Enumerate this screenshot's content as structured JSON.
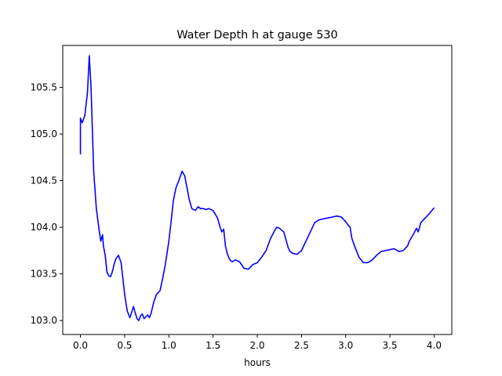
{
  "chart_data": {
    "type": "line",
    "title": "Water Depth h at gauge 530",
    "xlabel": "hours",
    "ylabel": "",
    "xlim": [
      -0.2,
      4.2
    ],
    "ylim": [
      102.85,
      105.95
    ],
    "xticks": [
      0.0,
      0.5,
      1.0,
      1.5,
      2.0,
      2.5,
      3.0,
      3.5,
      4.0
    ],
    "xtick_labels": [
      "0.0",
      "0.5",
      "1.0",
      "1.5",
      "2.0",
      "2.5",
      "3.0",
      "3.5",
      "4.0"
    ],
    "yticks": [
      103.0,
      103.5,
      104.0,
      104.5,
      105.0,
      105.5
    ],
    "ytick_labels": [
      "103.0",
      "103.5",
      "104.0",
      "104.5",
      "105.0",
      "105.5"
    ],
    "grid": false,
    "legend": "none",
    "series": [
      {
        "color": "#0000ff",
        "x": [
          0.0,
          0.0,
          0.02,
          0.05,
          0.08,
          0.1,
          0.12,
          0.15,
          0.18,
          0.21,
          0.23,
          0.25,
          0.26,
          0.28,
          0.3,
          0.32,
          0.34,
          0.36,
          0.38,
          0.4,
          0.43,
          0.46,
          0.48,
          0.5,
          0.53,
          0.56,
          0.6,
          0.62,
          0.64,
          0.66,
          0.68,
          0.7,
          0.72,
          0.74,
          0.76,
          0.78,
          0.8,
          0.83,
          0.86,
          0.9,
          0.93,
          0.96,
          1.0,
          1.03,
          1.05,
          1.08,
          1.12,
          1.15,
          1.18,
          1.2,
          1.23,
          1.26,
          1.3,
          1.33,
          1.36,
          1.39,
          1.42,
          1.45,
          1.5,
          1.55,
          1.58,
          1.6,
          1.62,
          1.64,
          1.66,
          1.68,
          1.7,
          1.72,
          1.75,
          1.8,
          1.85,
          1.9,
          1.95,
          2.0,
          2.05,
          2.1,
          2.15,
          2.2,
          2.22,
          2.25,
          2.3,
          2.35,
          2.37,
          2.4,
          2.45,
          2.5,
          2.55,
          2.6,
          2.65,
          2.7,
          2.75,
          2.8,
          2.85,
          2.9,
          2.95,
          3.0,
          3.03,
          3.05,
          3.07,
          3.1,
          3.15,
          3.2,
          3.25,
          3.3,
          3.35,
          3.4,
          3.45,
          3.5,
          3.55,
          3.6,
          3.65,
          3.7,
          3.72,
          3.75,
          3.78,
          3.8,
          3.82,
          3.85,
          3.9,
          3.95,
          4.0
        ],
        "y": [
          104.78,
          105.17,
          105.12,
          105.2,
          105.45,
          105.84,
          105.5,
          104.6,
          104.2,
          103.98,
          103.85,
          103.92,
          103.8,
          103.7,
          103.52,
          103.48,
          103.47,
          103.52,
          103.6,
          103.66,
          103.7,
          103.62,
          103.45,
          103.28,
          103.1,
          103.03,
          103.15,
          103.08,
          103.02,
          103.0,
          103.05,
          103.07,
          103.02,
          103.04,
          103.06,
          103.03,
          103.08,
          103.2,
          103.28,
          103.32,
          103.45,
          103.6,
          103.85,
          104.1,
          104.28,
          104.42,
          104.52,
          104.6,
          104.55,
          104.45,
          104.3,
          104.2,
          104.18,
          104.22,
          104.2,
          104.2,
          104.19,
          104.2,
          104.18,
          104.1,
          104.0,
          103.95,
          103.98,
          103.8,
          103.72,
          103.67,
          103.64,
          103.63,
          103.65,
          103.63,
          103.56,
          103.55,
          103.6,
          103.62,
          103.68,
          103.75,
          103.88,
          103.97,
          104.0,
          103.99,
          103.95,
          103.78,
          103.74,
          103.72,
          103.71,
          103.75,
          103.85,
          103.95,
          104.05,
          104.08,
          104.09,
          104.1,
          104.11,
          104.12,
          104.11,
          104.06,
          104.02,
          104.0,
          103.88,
          103.8,
          103.68,
          103.62,
          103.62,
          103.65,
          103.7,
          103.74,
          103.75,
          103.76,
          103.77,
          103.74,
          103.75,
          103.8,
          103.85,
          103.9,
          103.95,
          103.99,
          103.95,
          104.05,
          104.1,
          104.15,
          104.21
        ]
      }
    ]
  }
}
